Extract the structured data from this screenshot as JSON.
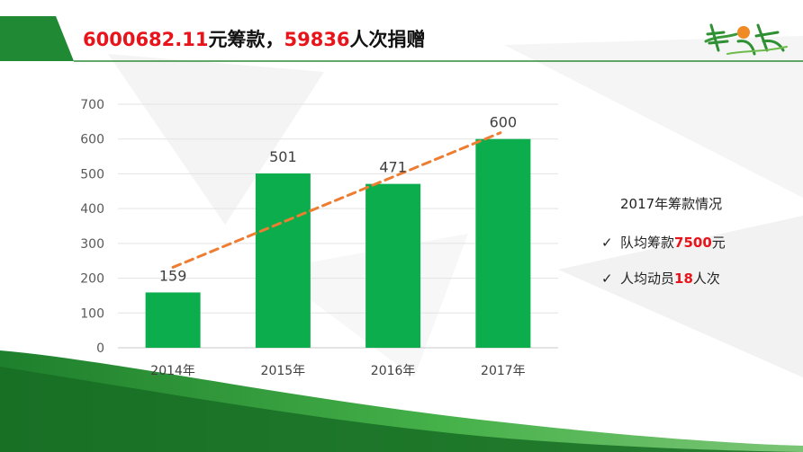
{
  "header": {
    "amount": "6000682.11",
    "amount_suffix": "元筹款，",
    "count": "59836",
    "count_suffix": "人次捐赠"
  },
  "logo": {
    "icon": "shanxingzhe-logo-icon",
    "text": "善行者"
  },
  "chart_data": {
    "type": "bar",
    "categories": [
      "2014年",
      "2015年",
      "2016年",
      "2017年"
    ],
    "values": [
      159,
      501,
      471,
      600
    ],
    "data_labels": [
      "159",
      "501",
      "471",
      "600"
    ],
    "y_ticks": [
      "0",
      "100",
      "200",
      "300",
      "400",
      "500",
      "600",
      "700"
    ],
    "ylim": [
      0,
      700
    ],
    "bar_color": "#0bad4c",
    "trendline": {
      "style": "dashed",
      "color": "#ee7d31",
      "from": 159,
      "to": 600
    },
    "title": "",
    "xlabel": "",
    "ylabel": "",
    "grid": true
  },
  "side_panel": {
    "title": "2017年筹款情况",
    "items": [
      {
        "check": "✓",
        "prefix": "队均筹款",
        "value": "7500",
        "suffix": "元"
      },
      {
        "check": "✓",
        "prefix": "人均动员",
        "value": "18",
        "suffix": "人次"
      }
    ]
  },
  "colors": {
    "accent_green": "#0bad4c",
    "dark_green": "#1f8a33",
    "highlight_red": "#e8141b",
    "trend_orange": "#ee7d31"
  }
}
